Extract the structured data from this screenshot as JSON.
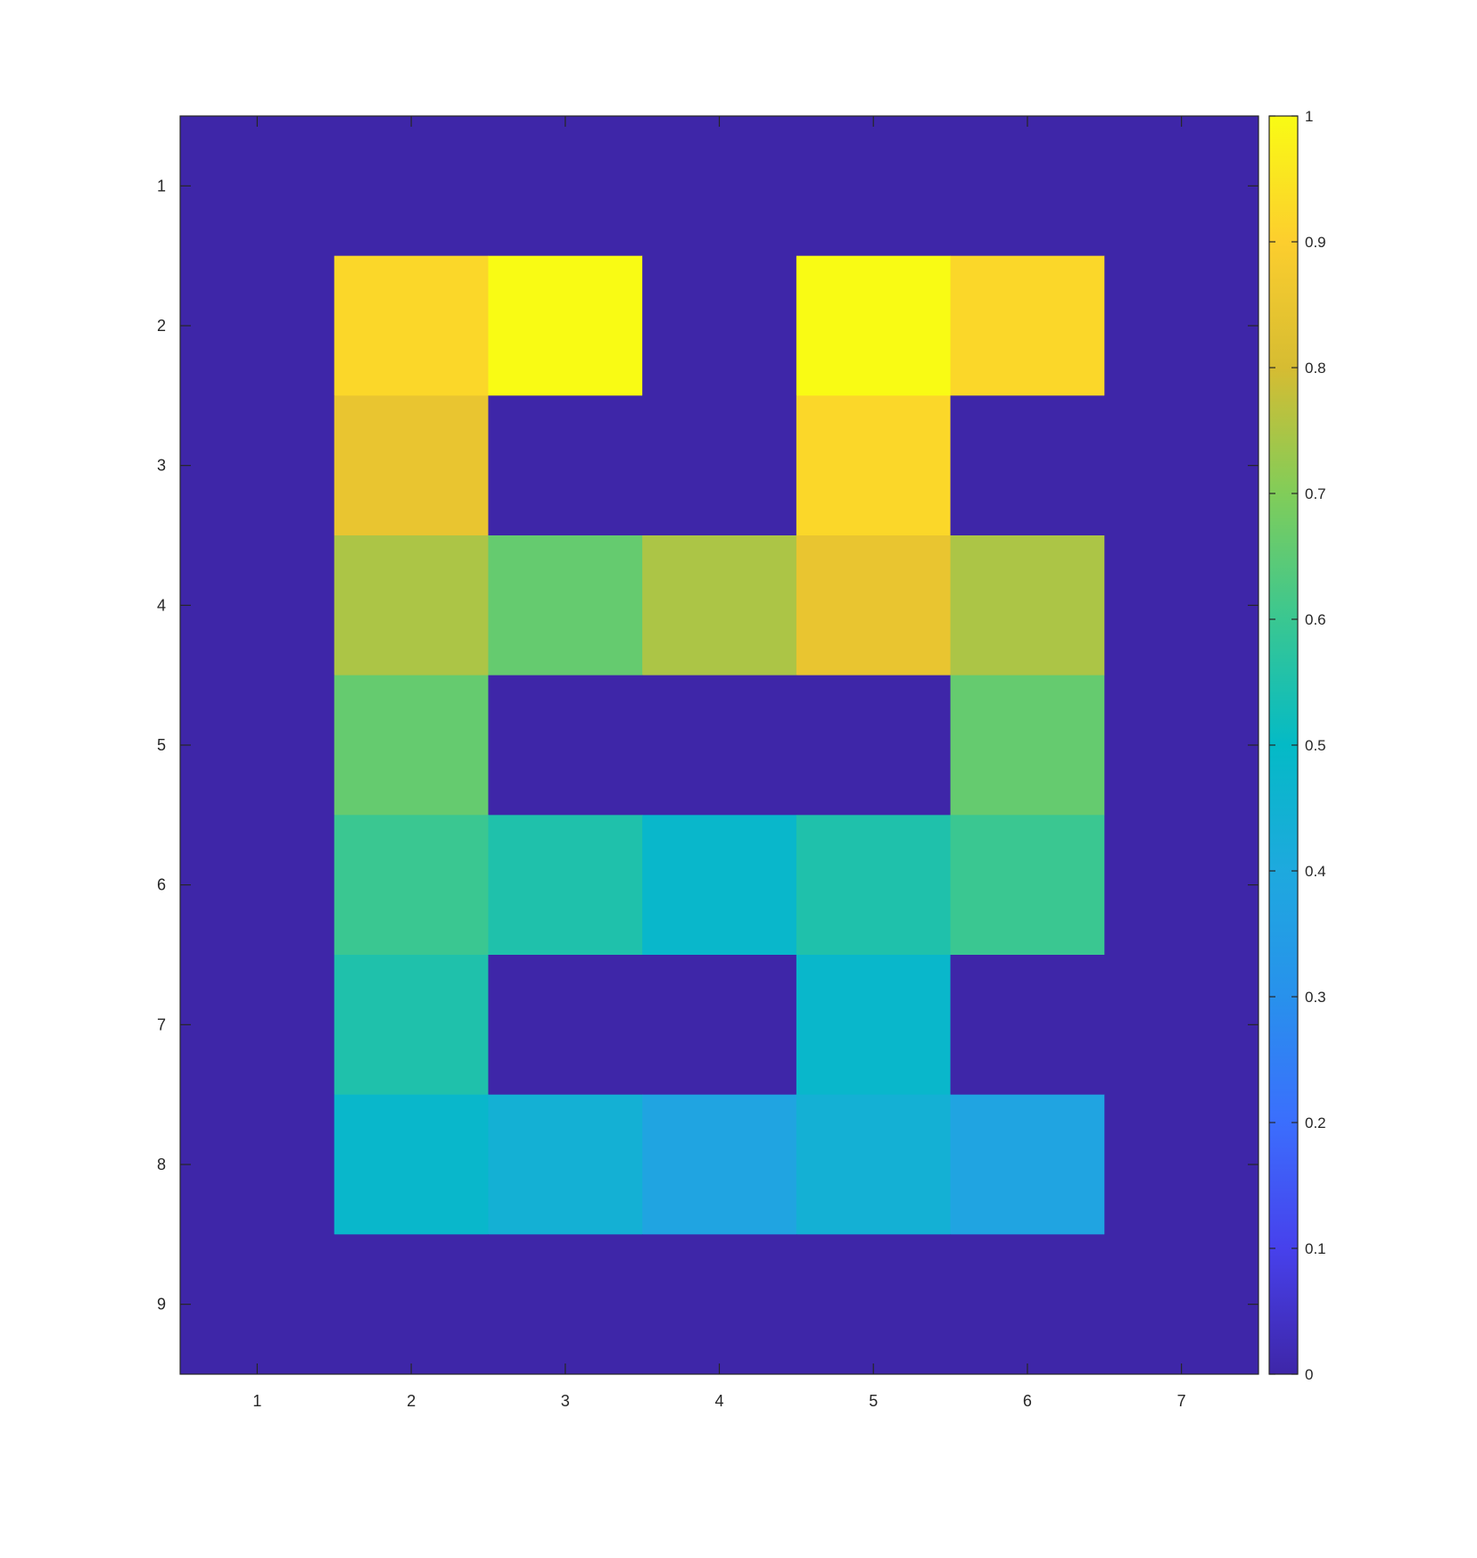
{
  "chart_data": {
    "type": "heatmap",
    "title": "",
    "xlabel": "",
    "ylabel": "",
    "x_ticks": [
      1,
      2,
      3,
      4,
      5,
      6,
      7
    ],
    "y_ticks": [
      1,
      2,
      3,
      4,
      5,
      6,
      7,
      8,
      9
    ],
    "xlim": [
      0.5,
      7.5
    ],
    "ylim": [
      0.5,
      9.5
    ],
    "y_direction": "reverse",
    "grid": false,
    "colormap": "parula",
    "colorbar": {
      "placement": "right",
      "range": [
        0,
        1
      ],
      "ticks": [
        "0",
        "0.1",
        "0.2",
        "0.3",
        "0.4",
        "0.5",
        "0.6",
        "0.7",
        "0.8",
        "0.9",
        "1"
      ]
    },
    "values": [
      [
        0,
        0,
        0,
        0,
        0,
        0,
        0
      ],
      [
        0,
        0.92,
        1.0,
        0,
        1.0,
        0.92,
        0
      ],
      [
        0,
        0.85,
        0,
        0,
        0.92,
        0,
        0
      ],
      [
        0,
        0.75,
        0.66,
        0.75,
        0.85,
        0.75,
        0
      ],
      [
        0,
        0.66,
        0,
        0,
        0,
        0.66,
        0
      ],
      [
        0,
        0.6,
        0.55,
        0.48,
        0.55,
        0.6,
        0
      ],
      [
        0,
        0.55,
        0,
        0,
        0.48,
        0,
        0
      ],
      [
        0,
        0.48,
        0.44,
        0.38,
        0.44,
        0.38,
        0
      ],
      [
        0,
        0,
        0,
        0,
        0,
        0,
        0
      ]
    ]
  }
}
